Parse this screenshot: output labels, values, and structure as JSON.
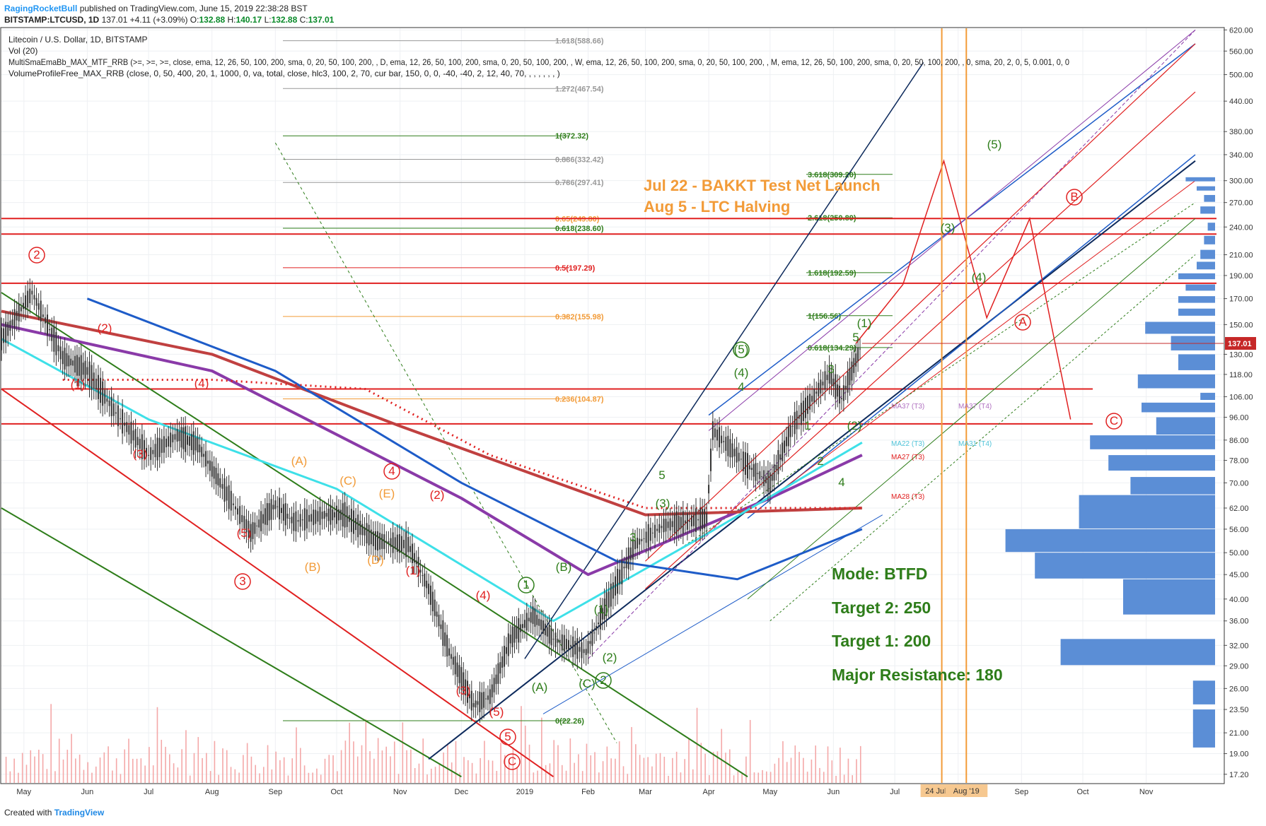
{
  "header": {
    "author": "RagingRocketBull",
    "published": "published on TradingView.com, June 15, 2019 22:38:28 BST",
    "symbol": "BITSTAMP:LTCUSD, 1D",
    "last": "137.01",
    "change": "+4.11 (+3.09%)",
    "open_label": "O:",
    "open": "132.88",
    "high_label": "H:",
    "high": "140.17",
    "low_label": "L:",
    "low": "132.88",
    "close_label": "C:",
    "close": "137.01"
  },
  "footer": {
    "created_with": "Created with",
    "brand": "TradingView"
  },
  "indicators": {
    "title": "Litecoin / U.S. Dollar, 1D, BITSTAMP",
    "vol": "Vol (20)",
    "mtf": "MultiSmaEmaBb_MAX_MTF_RRB (>=, >=, >=, close, ema, 12, 26, 50, 100, 200, sma, 0, 20, 50, 100, 200, , D, ema, 12, 26, 50, 100, 200, sma, 0, 20, 50, 100, 200, , W, ema, 12, 26, 50, 100, 200, sma, 0, 20, 50, 100, 200, , M, ema, 12, 26, 50, 100, 200, sma, 0, 20, 50, 100, 200, , 0, sma, 20, 2, 0, 5, 0.001, 0, 0",
    "vp": "VolumeProfileFree_MAX_RRB (close, 0, 50, 400, 20, 1, 1000, 0, va, total, close, hlc3, 100, 2, 70, cur bar, 150, 0, 0, -40, -40, 2, 12, 40, 70, , , , , , , )"
  },
  "colors": {
    "candle": "#333333",
    "red": "#e02020",
    "green": "#2e7d1a",
    "orange": "#f29b38",
    "blue": "#1e5cc8",
    "navy": "#0d2a5c",
    "cyan": "#3ee0e8",
    "purple": "#8a3aa8",
    "maroon": "#c04040",
    "profile": "#5b8ed6",
    "volume": "#f4a8a8",
    "priceTag": "#c62828"
  },
  "chart_data": {
    "type": "candlestick",
    "y_scale": "log",
    "ylim": [
      16.5,
      625
    ],
    "y_ticks": [
      "17.20",
      "19.00",
      "21.00",
      "23.50",
      "26.00",
      "29.00",
      "32.00",
      "36.00",
      "40.00",
      "45.00",
      "50.00",
      "56.00",
      "62.00",
      "70.00",
      "78.00",
      "86.00",
      "96.00",
      "106.00",
      "118.00",
      "130.00",
      "150.00",
      "170.00",
      "190.00",
      "210.00",
      "240.00",
      "270.00",
      "300.00",
      "340.00",
      "380.00",
      "440.00",
      "500.00",
      "560.00",
      "620.00"
    ],
    "x_ticks": [
      "May",
      "Jun",
      "Jul",
      "Aug",
      "Sep",
      "Oct",
      "Nov",
      "Dec",
      "2019",
      "Feb",
      "Mar",
      "Apr",
      "May",
      "Jun",
      "Jul",
      "Aug",
      "Sep",
      "Oct",
      "Nov"
    ],
    "x_tick_values": [
      "2018-05",
      "2018-06",
      "2018-07",
      "2018-08",
      "2018-09",
      "2018-10",
      "2018-11",
      "2018-12",
      "2019-01",
      "2019-02",
      "2019-03",
      "2019-04",
      "2019-05",
      "2019-06",
      "2019-07",
      "2019-08",
      "2019-09",
      "2019-10",
      "2019-11"
    ],
    "last_price": "137.01",
    "price_series": [
      [
        "2018-04-20",
        140
      ],
      [
        "2018-05-05",
        175
      ],
      [
        "2018-05-20",
        128
      ],
      [
        "2018-06-01",
        120
      ],
      [
        "2018-06-15",
        98
      ],
      [
        "2018-07-01",
        80
      ],
      [
        "2018-07-15",
        88
      ],
      [
        "2018-07-25",
        84
      ],
      [
        "2018-08-05",
        70
      ],
      [
        "2018-08-20",
        55
      ],
      [
        "2018-09-01",
        63
      ],
      [
        "2018-09-10",
        58
      ],
      [
        "2018-09-25",
        60
      ],
      [
        "2018-10-05",
        60
      ],
      [
        "2018-10-20",
        53
      ],
      [
        "2018-11-05",
        52
      ],
      [
        "2018-11-15",
        42
      ],
      [
        "2018-11-25",
        31
      ],
      [
        "2018-12-07",
        24
      ],
      [
        "2018-12-15",
        25
      ],
      [
        "2018-12-25",
        33
      ],
      [
        "2019-01-05",
        37
      ],
      [
        "2019-01-15",
        33
      ],
      [
        "2019-01-31",
        31
      ],
      [
        "2019-02-10",
        39
      ],
      [
        "2019-02-24",
        52
      ],
      [
        "2019-03-10",
        57
      ],
      [
        "2019-03-31",
        59
      ],
      [
        "2019-04-03",
        90
      ],
      [
        "2019-04-20",
        76
      ],
      [
        "2019-05-01",
        70
      ],
      [
        "2019-05-12",
        92
      ],
      [
        "2019-05-30",
        118
      ],
      [
        "2019-06-05",
        105
      ],
      [
        "2019-06-15",
        137
      ]
    ],
    "fib_levels": [
      {
        "label": "1.618(588.66)",
        "value": 588.66
      },
      {
        "label": "1.272(467.54)",
        "value": 467.54
      },
      {
        "label": "1(372.32)",
        "value": 372.32
      },
      {
        "label": "0.886(332.42)",
        "value": 332.42
      },
      {
        "label": "0.786(297.41)",
        "value": 297.41
      },
      {
        "label": "0.65(249.80)",
        "value": 249.8
      },
      {
        "label": "0.618(238.60)",
        "value": 238.6
      },
      {
        "label": "0.5(197.29)",
        "value": 197.29
      },
      {
        "label": "0.382(155.98)",
        "value": 155.98
      },
      {
        "label": "0.236(104.87)",
        "value": 104.87
      },
      {
        "label": "0(22.26)",
        "value": 22.26
      }
    ],
    "target_levels": [
      {
        "label": "3.618(309.20)",
        "value": 309.2
      },
      {
        "label": "2.618(250.89)",
        "value": 250.89
      },
      {
        "label": "1.618(192.59)",
        "value": 192.59
      },
      {
        "label": "1(156.56)",
        "value": 156.56
      },
      {
        "label": "0.618(134.29)",
        "value": 134.29
      }
    ],
    "resistance_lines": [
      250,
      232,
      183,
      110,
      93
    ],
    "ma_labels": [
      "MA37 (T3)",
      "MA37 (T4)",
      "MA22 (T3)",
      "MA31 (T4)",
      "MA27 (T3)",
      "MA28 (T3)"
    ],
    "vertical_markers": [
      "24 Jul '19",
      "Aug '19"
    ],
    "annotations": {
      "events": [
        "Jul 22 - BAKKT Test Net Launch",
        "Aug 5 - LTC Halving"
      ],
      "mode": "Mode: BTFD",
      "target2": "Target 2: 250",
      "target1": "Target 1: 200",
      "resistance": "Major Resistance: 180"
    },
    "wave_labels": [
      "2",
      "(2)",
      "(1)",
      "(4)",
      "(3)",
      "(5)",
      "3",
      "(A)",
      "(B)",
      "(C)",
      "(D)",
      "(E)",
      "4",
      "(2)",
      "(1)",
      "(4)",
      "(3)",
      "(5)",
      "5",
      "C",
      "(A)",
      "(B)",
      "(C)",
      "(2)",
      "2",
      "1",
      "(1)",
      "(3)",
      "3",
      "5",
      "(5)",
      "(4)",
      "4",
      "1",
      "2",
      "3",
      "4",
      "5",
      "(1)",
      "(2)",
      "(3)",
      "(4)",
      "(5)",
      "A",
      "B",
      "C"
    ],
    "volume_profile": [
      [
        19.5,
        23.5,
        0.06
      ],
      [
        24,
        27,
        0.06
      ],
      [
        29,
        33,
        0.42
      ],
      [
        37,
        44,
        0.25
      ],
      [
        44,
        50,
        0.49
      ],
      [
        50,
        56,
        0.57
      ],
      [
        56,
        66,
        0.37
      ],
      [
        66,
        72,
        0.23
      ],
      [
        74,
        80,
        0.29
      ],
      [
        82,
        88,
        0.34
      ],
      [
        88,
        96,
        0.16
      ],
      [
        98,
        103,
        0.2
      ],
      [
        104,
        108,
        0.04
      ],
      [
        110,
        118,
        0.21
      ],
      [
        120,
        130,
        0.1
      ],
      [
        132,
        142,
        0.12
      ],
      [
        143,
        152,
        0.19
      ],
      [
        156,
        162,
        0.1
      ],
      [
        166,
        172,
        0.1
      ],
      [
        176,
        182,
        0.08
      ],
      [
        186,
        192,
        0.1
      ],
      [
        195,
        203,
        0.05
      ],
      [
        205,
        215,
        0.04
      ],
      [
        220,
        230,
        0.03
      ],
      [
        235,
        245,
        0.02
      ],
      [
        255,
        265,
        0.04
      ],
      [
        270,
        280,
        0.03
      ],
      [
        285,
        292,
        0.05
      ],
      [
        298,
        305,
        0.08
      ]
    ]
  }
}
